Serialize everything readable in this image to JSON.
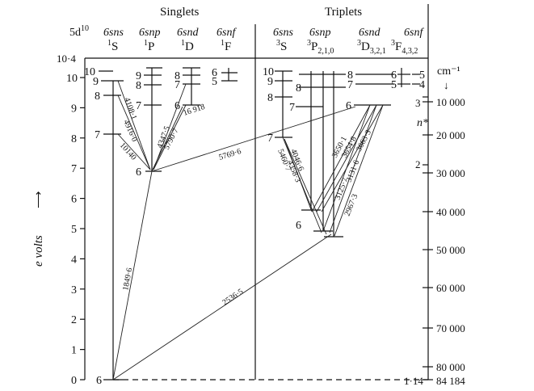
{
  "header": {
    "shell": "5d",
    "shell_sup": "10",
    "singlets": "Singlets",
    "triplets": "Triplets",
    "columns": [
      {
        "conf": "6sns",
        "term": "S",
        "mult": "1"
      },
      {
        "conf": "6snp",
        "term": "P",
        "mult": "1"
      },
      {
        "conf": "6snd",
        "term": "D",
        "mult": "1"
      },
      {
        "conf": "6snf",
        "term": "F",
        "mult": "1"
      },
      {
        "conf": "6sns",
        "term": "S",
        "mult": "3"
      },
      {
        "conf": "6snp",
        "term": "P",
        "mult": "3",
        "sub": "2,1,0"
      },
      {
        "conf": "6snd",
        "term": "D",
        "mult": "3",
        "sub": "3,2,1"
      },
      {
        "conf": "6snf",
        "term": "F",
        "mult": "3",
        "sub": "4,3,2"
      }
    ]
  },
  "left_axis": {
    "label": "e volts",
    "arrow": "⟶",
    "ticks": [
      "0",
      "1",
      "2",
      "3",
      "4",
      "5",
      "6",
      "7",
      "8",
      "9",
      "10",
      "10·4"
    ]
  },
  "right_axis": {
    "unit": "cm⁻¹",
    "unit_arrow": "↓",
    "nstar": "n*",
    "ticks": [
      "10 000",
      "20 000",
      "30 000",
      "40 000",
      "50 000",
      "60 000",
      "70 000",
      "80 000",
      "84 184"
    ],
    "nstar_ticks": [
      "3",
      "2",
      "1·14"
    ]
  },
  "transitions": [
    {
      "label": "1849·6"
    },
    {
      "label": "2536·5"
    },
    {
      "label": "5769·6"
    },
    {
      "label": "4108·1"
    },
    {
      "label": "4916·0"
    },
    {
      "label": "10140"
    },
    {
      "label": "4347·5"
    },
    {
      "label": "5790·7"
    },
    {
      "label": "16 918"
    },
    {
      "label": "5460·7"
    },
    {
      "label": "4046·6"
    },
    {
      "label": "4358·3"
    },
    {
      "label": "3650·1"
    },
    {
      "label": "3654·8"
    },
    {
      "label": "3663·3"
    },
    {
      "label": "3125·7"
    },
    {
      "label": "3131·6"
    },
    {
      "label": "2967·3"
    }
  ],
  "level_labels": {
    "s1": [
      "10",
      "9",
      "8",
      "7",
      "6"
    ],
    "p1": [
      "9",
      "8",
      "7",
      "6"
    ],
    "d1": [
      "8",
      "7",
      "6"
    ],
    "f1": [
      "6",
      "5"
    ],
    "s3": [
      "10",
      "9",
      "8",
      "7"
    ],
    "p3": [
      "8",
      "7",
      "6"
    ],
    "d3": [
      "8",
      "7",
      "6"
    ],
    "f3": [
      "6",
      "5",
      "5",
      "4"
    ]
  }
}
